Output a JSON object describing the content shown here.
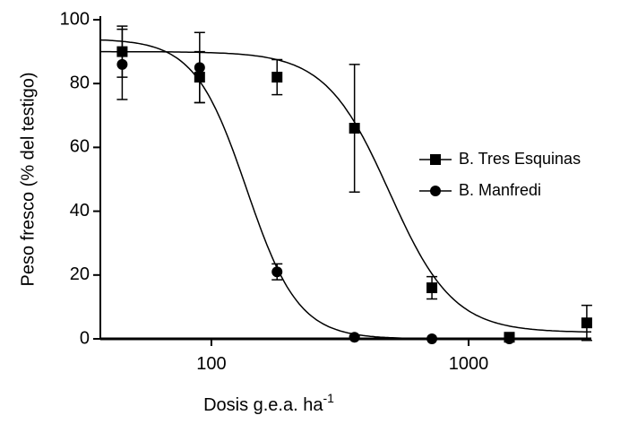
{
  "chart_data": {
    "type": "scatter",
    "xlabel": "Dosis g.e.a. ha",
    "xlabel_sup": "-1",
    "ylabel": "Peso fresco (% del testigo)",
    "xscale": "log",
    "xlim": [
      37,
      3000
    ],
    "xticks": [
      100,
      1000
    ],
    "ylim": [
      0,
      100
    ],
    "yticks": [
      0,
      20,
      40,
      60,
      80,
      100
    ],
    "legend": "right",
    "series": [
      {
        "name": "B. Tres Esquinas",
        "marker": "square",
        "color": "#000000",
        "x": [
          45,
          90,
          180,
          360,
          720,
          1440,
          2880
        ],
        "values": [
          90,
          82,
          82,
          66,
          16,
          0.5,
          5
        ],
        "errors": [
          8,
          8,
          5.5,
          20,
          3.5,
          0.5,
          5.5
        ],
        "curve": {
          "top": 90,
          "bottom": 2,
          "ec50": 492,
          "hill": 3.5
        }
      },
      {
        "name": "B. Manfredi",
        "marker": "circle",
        "color": "#000000",
        "x": [
          45,
          90,
          180,
          360,
          720,
          1440
        ],
        "values": [
          86,
          85,
          21,
          0.5,
          0,
          0
        ],
        "errors": [
          11,
          11,
          2.5,
          0.3,
          0.2,
          0.2
        ],
        "curve": {
          "top": 94,
          "bottom": 0,
          "ec50": 137,
          "hill": 4.3
        }
      }
    ]
  }
}
